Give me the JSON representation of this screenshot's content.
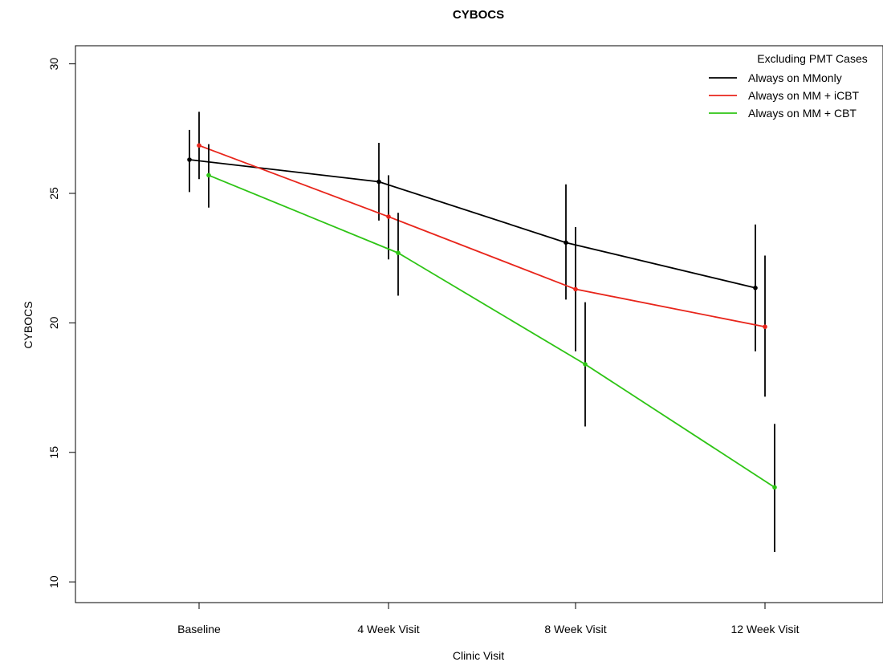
{
  "chart_data": {
    "type": "line",
    "title": "CYBOCS",
    "xlabel": "Clinic Visit",
    "ylabel": "CYBOCS",
    "categories": [
      "Baseline",
      "4 Week Visit",
      "8 Week Visit",
      "12 Week Visit"
    ],
    "yticks": [
      10,
      15,
      20,
      25,
      30
    ],
    "ylim": [
      9.2,
      30.7
    ],
    "grid": false,
    "legend": {
      "title": "Excluding PMT Cases",
      "placement": "top-right"
    },
    "series": [
      {
        "name": "Always on MMonly",
        "color": "#000000",
        "values": [
          26.3,
          25.45,
          23.1,
          21.35
        ],
        "ci_low": [
          25.05,
          23.95,
          20.9,
          18.9
        ],
        "ci_high": [
          27.45,
          26.95,
          25.35,
          23.8
        ]
      },
      {
        "name": "Always on MM + iCBT",
        "color": "#e8251b",
        "values": [
          26.85,
          24.1,
          21.3,
          19.85
        ],
        "ci_low": [
          25.55,
          22.45,
          18.9,
          17.15
        ],
        "ci_high": [
          28.15,
          25.7,
          23.7,
          22.6
        ]
      },
      {
        "name": "Always on MM + CBT",
        "color": "#2ec415",
        "values": [
          25.7,
          22.7,
          18.4,
          13.65
        ],
        "ci_low": [
          24.45,
          21.05,
          16.0,
          11.15
        ],
        "ci_high": [
          26.9,
          24.25,
          20.8,
          16.1
        ]
      }
    ]
  }
}
